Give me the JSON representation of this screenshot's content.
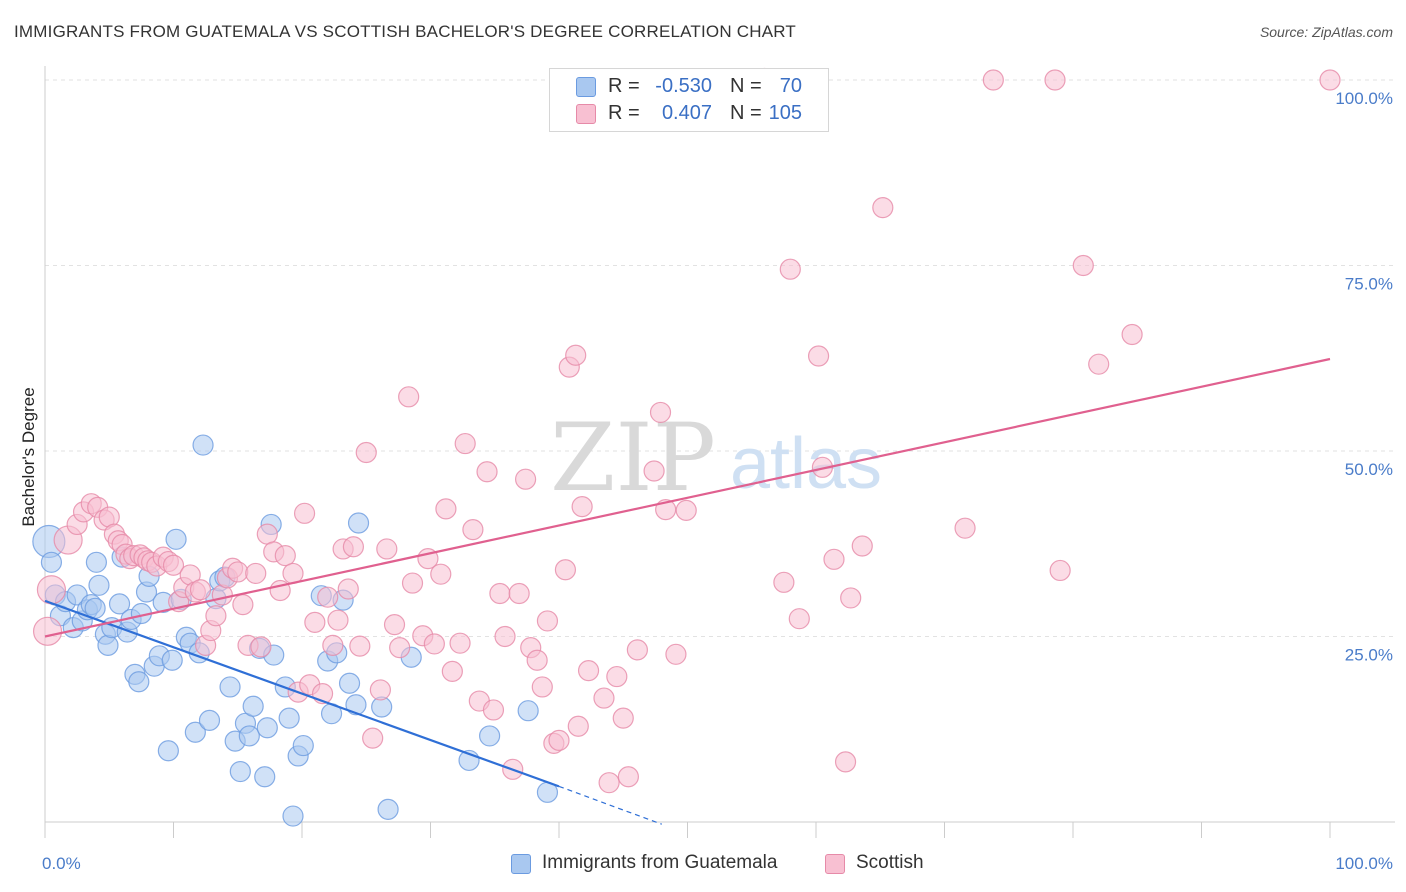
{
  "title": "IMMIGRANTS FROM GUATEMALA VS SCOTTISH BACHELOR'S DEGREE CORRELATION CHART",
  "source": "Source: ZipAtlas.com",
  "watermark": {
    "zip": "ZIP",
    "atlas": "atlas"
  },
  "legend": {
    "r_label": "R =",
    "n_label": "N =",
    "rows": [
      {
        "r": "-0.530",
        "n": "70",
        "color": "#a9c8f0",
        "border": "#6b9be0"
      },
      {
        "r": "0.407",
        "n": "105",
        "color": "#f8c0d2",
        "border": "#e68aa8"
      }
    ]
  },
  "bottom_legend": [
    {
      "label": "Immigrants from Guatemala",
      "color": "#a9c8f0",
      "border": "#6b9be0"
    },
    {
      "label": "Scottish",
      "color": "#f8c0d2",
      "border": "#e68aa8"
    }
  ],
  "chart_data": {
    "type": "scatter",
    "title": "IMMIGRANTS FROM GUATEMALA VS SCOTTISH BACHELOR'S DEGREE CORRELATION CHART",
    "xlabel": "",
    "ylabel": "Bachelor's Degree",
    "xlim": [
      0,
      100
    ],
    "ylim": [
      0,
      100
    ],
    "x_tick_labels": [
      "0.0%",
      "100.0%"
    ],
    "y_ticks": [
      25,
      50,
      75,
      100
    ],
    "y_tick_labels": [
      "25.0%",
      "50.0%",
      "75.0%",
      "100.0%"
    ],
    "grid": true,
    "legend_position": "top-center",
    "series": [
      {
        "name": "Immigrants from Guatemala",
        "color": "#6b9be0",
        "fill": "#a9c8f0",
        "trend": {
          "x": [
            0,
            40
          ],
          "y": [
            29.8,
            4.8
          ],
          "dashed_extension_to": [
            48,
            -0.3
          ],
          "color": "#2f6fd6"
        },
        "points": [
          [
            0.3,
            37.8,
            16
          ],
          [
            0.5,
            35,
            10
          ],
          [
            0.8,
            30.6,
            10
          ],
          [
            1.2,
            27.8,
            10
          ],
          [
            1.6,
            29.7,
            10
          ],
          [
            2.2,
            26.2,
            10
          ],
          [
            2.5,
            30.6,
            10
          ],
          [
            2.9,
            27.1,
            10
          ],
          [
            3.3,
            28.6,
            10
          ],
          [
            3.6,
            29.3,
            10
          ],
          [
            3.9,
            28.8,
            10
          ],
          [
            4.0,
            35.0,
            10
          ],
          [
            4.2,
            31.9,
            10
          ],
          [
            4.7,
            25.3,
            10
          ],
          [
            4.9,
            23.8,
            10
          ],
          [
            5.2,
            26.2,
            10
          ],
          [
            5.8,
            29.4,
            10
          ],
          [
            6.0,
            35.7,
            10
          ],
          [
            6.4,
            25.6,
            10
          ],
          [
            6.7,
            27.3,
            10
          ],
          [
            7.0,
            19.9,
            10
          ],
          [
            7.3,
            18.9,
            10
          ],
          [
            7.5,
            28.1,
            10
          ],
          [
            7.9,
            31.0,
            10
          ],
          [
            8.1,
            33.1,
            10
          ],
          [
            8.5,
            21.0,
            10
          ],
          [
            8.9,
            22.4,
            10
          ],
          [
            9.2,
            29.6,
            10
          ],
          [
            9.6,
            9.6,
            10
          ],
          [
            9.9,
            21.8,
            10
          ],
          [
            10.2,
            38.1,
            10
          ],
          [
            10.6,
            30.0,
            10
          ],
          [
            11.0,
            24.9,
            10
          ],
          [
            11.3,
            24.1,
            10
          ],
          [
            11.7,
            12.1,
            10
          ],
          [
            12.0,
            22.8,
            10
          ],
          [
            12.3,
            50.8,
            10
          ],
          [
            12.8,
            13.7,
            10
          ],
          [
            13.3,
            30.1,
            10
          ],
          [
            13.6,
            32.5,
            10
          ],
          [
            14.0,
            33.0,
            10
          ],
          [
            14.4,
            18.2,
            10
          ],
          [
            14.8,
            10.9,
            10
          ],
          [
            15.2,
            6.8,
            10
          ],
          [
            15.6,
            13.3,
            10
          ],
          [
            15.9,
            11.6,
            10
          ],
          [
            16.2,
            15.6,
            10
          ],
          [
            16.7,
            23.4,
            10
          ],
          [
            17.1,
            6.1,
            10
          ],
          [
            17.3,
            12.7,
            10
          ],
          [
            17.6,
            40.1,
            10
          ],
          [
            17.8,
            22.5,
            10
          ],
          [
            18.7,
            18.2,
            10
          ],
          [
            19.0,
            14.0,
            10
          ],
          [
            19.3,
            0.8,
            10
          ],
          [
            19.7,
            8.9,
            10
          ],
          [
            20.1,
            10.3,
            10
          ],
          [
            21.5,
            30.5,
            10
          ],
          [
            22.0,
            21.7,
            10
          ],
          [
            22.3,
            14.6,
            10
          ],
          [
            22.7,
            22.8,
            10
          ],
          [
            23.2,
            29.9,
            10
          ],
          [
            23.7,
            18.7,
            10
          ],
          [
            24.2,
            15.8,
            10
          ],
          [
            24.4,
            40.3,
            10
          ],
          [
            26.2,
            15.5,
            10
          ],
          [
            26.7,
            1.7,
            10
          ],
          [
            28.5,
            22.2,
            10
          ],
          [
            34.6,
            11.6,
            10
          ],
          [
            37.6,
            15.0,
            10
          ],
          [
            39.1,
            4.0,
            10
          ],
          [
            33.0,
            8.3,
            10
          ]
        ]
      },
      {
        "name": "Scottish",
        "color": "#e68aa8",
        "fill": "#f8c0d2",
        "trend": {
          "x": [
            0,
            100
          ],
          "y": [
            25.0,
            62.4
          ],
          "color": "#e0608f"
        },
        "points": [
          [
            0.2,
            25.7,
            14
          ],
          [
            0.5,
            31.3,
            14
          ],
          [
            1.8,
            38.0,
            14
          ],
          [
            2.5,
            40.1,
            10
          ],
          [
            3.0,
            41.8,
            10
          ],
          [
            3.6,
            42.9,
            10
          ],
          [
            4.1,
            42.4,
            10
          ],
          [
            4.6,
            40.7,
            10
          ],
          [
            5.0,
            41.1,
            10
          ],
          [
            5.4,
            38.8,
            10
          ],
          [
            5.7,
            37.9,
            10
          ],
          [
            6.0,
            37.4,
            10
          ],
          [
            6.3,
            36.1,
            10
          ],
          [
            6.6,
            35.5,
            10
          ],
          [
            6.9,
            35.9,
            10
          ],
          [
            7.4,
            36.0,
            10
          ],
          [
            7.7,
            35.6,
            10
          ],
          [
            8.0,
            35.2,
            10
          ],
          [
            8.3,
            35.0,
            10
          ],
          [
            8.7,
            34.5,
            10
          ],
          [
            9.2,
            35.7,
            10
          ],
          [
            9.6,
            35.1,
            10
          ],
          [
            10.0,
            34.6,
            10
          ],
          [
            10.4,
            29.7,
            10
          ],
          [
            10.8,
            31.6,
            10
          ],
          [
            11.3,
            33.3,
            10
          ],
          [
            11.7,
            31.0,
            10
          ],
          [
            12.1,
            31.3,
            10
          ],
          [
            12.5,
            23.8,
            10
          ],
          [
            12.9,
            25.8,
            10
          ],
          [
            13.3,
            27.8,
            10
          ],
          [
            13.8,
            30.6,
            10
          ],
          [
            14.2,
            32.9,
            10
          ],
          [
            14.6,
            34.2,
            10
          ],
          [
            15.0,
            33.7,
            10
          ],
          [
            15.4,
            29.3,
            10
          ],
          [
            15.8,
            23.8,
            10
          ],
          [
            16.4,
            33.5,
            10
          ],
          [
            16.8,
            23.6,
            10
          ],
          [
            17.3,
            38.8,
            10
          ],
          [
            17.8,
            36.4,
            10
          ],
          [
            18.3,
            31.2,
            10
          ],
          [
            18.7,
            35.9,
            10
          ],
          [
            19.3,
            33.5,
            10
          ],
          [
            19.7,
            17.5,
            10
          ],
          [
            20.2,
            41.6,
            10
          ],
          [
            20.6,
            18.5,
            10
          ],
          [
            21.0,
            26.9,
            10
          ],
          [
            21.6,
            17.3,
            10
          ],
          [
            22.0,
            30.3,
            10
          ],
          [
            22.4,
            23.8,
            10
          ],
          [
            22.8,
            27.2,
            10
          ],
          [
            23.2,
            36.8,
            10
          ],
          [
            23.6,
            31.4,
            10
          ],
          [
            24.0,
            37.1,
            10
          ],
          [
            24.5,
            23.7,
            10
          ],
          [
            25.0,
            49.8,
            10
          ],
          [
            25.5,
            11.3,
            10
          ],
          [
            26.1,
            17.8,
            10
          ],
          [
            26.6,
            36.8,
            10
          ],
          [
            27.2,
            26.6,
            10
          ],
          [
            27.6,
            23.5,
            10
          ],
          [
            28.3,
            57.3,
            10
          ],
          [
            28.6,
            32.2,
            10
          ],
          [
            29.4,
            25.1,
            10
          ],
          [
            29.8,
            35.5,
            10
          ],
          [
            30.3,
            24.0,
            10
          ],
          [
            30.8,
            33.4,
            10
          ],
          [
            31.2,
            42.2,
            10
          ],
          [
            31.7,
            20.3,
            10
          ],
          [
            32.3,
            24.1,
            10
          ],
          [
            32.7,
            51.0,
            10
          ],
          [
            33.3,
            39.4,
            10
          ],
          [
            33.8,
            16.3,
            10
          ],
          [
            34.4,
            47.2,
            10
          ],
          [
            34.9,
            15.1,
            10
          ],
          [
            35.4,
            30.8,
            10
          ],
          [
            35.8,
            25.0,
            10
          ],
          [
            36.4,
            7.1,
            10
          ],
          [
            36.9,
            30.8,
            10
          ],
          [
            37.4,
            46.2,
            10
          ],
          [
            37.8,
            23.5,
            10
          ],
          [
            38.3,
            21.8,
            10
          ],
          [
            38.7,
            18.2,
            10
          ],
          [
            39.1,
            27.1,
            10
          ],
          [
            39.6,
            10.6,
            10
          ],
          [
            40.0,
            11.0,
            10
          ],
          [
            40.5,
            34.0,
            10
          ],
          [
            40.8,
            61.3,
            10
          ],
          [
            41.3,
            62.9,
            10
          ],
          [
            41.8,
            42.5,
            10
          ],
          [
            41.5,
            12.9,
            10
          ],
          [
            42.3,
            20.4,
            10
          ],
          [
            43.5,
            16.7,
            10
          ],
          [
            43.9,
            5.3,
            10
          ],
          [
            44.5,
            19.6,
            10
          ],
          [
            45.0,
            14.0,
            10
          ],
          [
            45.4,
            6.1,
            10
          ],
          [
            46.1,
            23.2,
            10
          ],
          [
            47.4,
            47.3,
            10
          ],
          [
            47.9,
            55.2,
            10
          ],
          [
            48.3,
            42.1,
            10
          ],
          [
            49.1,
            22.6,
            10
          ],
          [
            57.5,
            32.3,
            10
          ],
          [
            58.0,
            74.5,
            10
          ],
          [
            58.7,
            27.4,
            10
          ],
          [
            60.2,
            62.8,
            10
          ],
          [
            60.5,
            47.8,
            10
          ],
          [
            61.4,
            35.4,
            10
          ],
          [
            62.3,
            8.1,
            10
          ],
          [
            62.7,
            30.2,
            10
          ],
          [
            63.6,
            37.2,
            10
          ],
          [
            65.2,
            82.8,
            10
          ],
          [
            71.6,
            39.6,
            10
          ],
          [
            73.8,
            100.0,
            10
          ],
          [
            78.6,
            100.0,
            10
          ],
          [
            79.0,
            33.9,
            10
          ],
          [
            80.8,
            75.0,
            10
          ],
          [
            82.0,
            61.7,
            10
          ],
          [
            84.6,
            65.7,
            10
          ],
          [
            100.0,
            100.0,
            10
          ],
          [
            49.9,
            42.0,
            10
          ],
          [
            56.0,
            100.2,
            10
          ]
        ]
      }
    ]
  }
}
